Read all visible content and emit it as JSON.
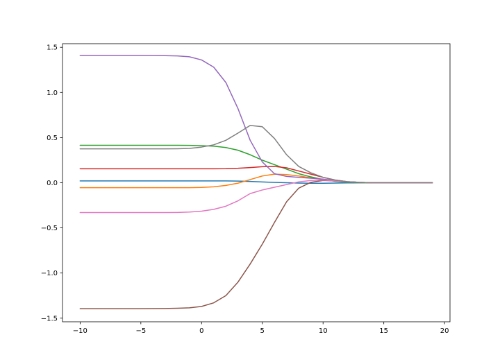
{
  "chart_data": {
    "type": "line",
    "title": "",
    "xlabel": "",
    "ylabel": "",
    "xlim": [
      -11.45,
      20.45
    ],
    "ylim": [
      -1.54,
      1.54
    ],
    "xticks": [
      -10,
      -5,
      0,
      5,
      10,
      15,
      20
    ],
    "yticks": [
      -1.5,
      -1.0,
      -0.5,
      0.0,
      0.5,
      1.0,
      1.5
    ],
    "xtick_labels": [
      "−10",
      "−5",
      "0",
      "5",
      "10",
      "15",
      "20"
    ],
    "ytick_labels": [
      "−1.5",
      "−1.0",
      "−0.5",
      "0.0",
      "0.5",
      "1.0",
      "1.5"
    ],
    "grid": false,
    "legend": "none",
    "x": [
      -10,
      -9,
      -8,
      -7,
      -6,
      -5,
      -4,
      -3,
      -2,
      -1,
      0,
      1,
      2,
      3,
      4,
      5,
      6,
      7,
      8,
      9,
      10,
      11,
      12,
      13,
      14,
      15,
      16,
      17,
      18,
      19
    ],
    "series": [
      {
        "color": "#1f77b4",
        "values": [
          0.02,
          0.02,
          0.02,
          0.02,
          0.02,
          0.02,
          0.02,
          0.02,
          0.02,
          0.02,
          0.02,
          0.02,
          0.02,
          0.018,
          0.014,
          0.009,
          0.004,
          0.0,
          -0.004,
          -0.006,
          -0.006,
          -0.004,
          -0.002,
          -0.001,
          0.0,
          0.0,
          0.0,
          0.0,
          0.0,
          0.0
        ]
      },
      {
        "color": "#ff7f0e",
        "values": [
          -0.055,
          -0.055,
          -0.055,
          -0.055,
          -0.055,
          -0.055,
          -0.055,
          -0.055,
          -0.055,
          -0.055,
          -0.052,
          -0.045,
          -0.03,
          -0.005,
          0.035,
          0.075,
          0.095,
          0.09,
          0.075,
          0.055,
          0.035,
          0.018,
          0.007,
          0.002,
          0.0,
          0.0,
          0.0,
          0.0,
          0.0,
          0.0
        ]
      },
      {
        "color": "#2ca02c",
        "values": [
          0.415,
          0.415,
          0.415,
          0.415,
          0.415,
          0.415,
          0.415,
          0.415,
          0.415,
          0.414,
          0.41,
          0.405,
          0.39,
          0.36,
          0.31,
          0.25,
          0.2,
          0.15,
          0.1,
          0.065,
          0.035,
          0.015,
          0.005,
          0.0,
          0.0,
          0.0,
          0.0,
          0.0,
          0.0,
          0.0
        ]
      },
      {
        "color": "#d62728",
        "values": [
          0.155,
          0.155,
          0.155,
          0.155,
          0.155,
          0.155,
          0.155,
          0.155,
          0.155,
          0.155,
          0.155,
          0.155,
          0.156,
          0.16,
          0.168,
          0.178,
          0.18,
          0.165,
          0.13,
          0.095,
          0.06,
          0.03,
          0.012,
          0.004,
          0.0,
          0.0,
          0.0,
          0.0,
          0.0,
          0.0
        ]
      },
      {
        "color": "#9467bd",
        "values": [
          1.41,
          1.41,
          1.41,
          1.41,
          1.41,
          1.41,
          1.409,
          1.408,
          1.405,
          1.395,
          1.36,
          1.28,
          1.11,
          0.82,
          0.47,
          0.23,
          0.1,
          0.07,
          0.06,
          0.05,
          0.04,
          0.025,
          0.012,
          0.004,
          0.0,
          0.0,
          0.0,
          0.0,
          0.0,
          0.0
        ]
      },
      {
        "color": "#8c564b",
        "values": [
          -1.395,
          -1.395,
          -1.395,
          -1.395,
          -1.395,
          -1.395,
          -1.394,
          -1.393,
          -1.39,
          -1.385,
          -1.37,
          -1.33,
          -1.25,
          -1.1,
          -0.9,
          -0.68,
          -0.44,
          -0.21,
          -0.06,
          0.005,
          0.025,
          0.02,
          0.01,
          0.004,
          0.0,
          0.0,
          0.0,
          0.0,
          0.0,
          0.0
        ]
      },
      {
        "color": "#e377c2",
        "values": [
          -0.33,
          -0.33,
          -0.33,
          -0.33,
          -0.33,
          -0.33,
          -0.33,
          -0.33,
          -0.329,
          -0.325,
          -0.315,
          -0.295,
          -0.26,
          -0.2,
          -0.12,
          -0.08,
          -0.05,
          -0.02,
          0.01,
          0.025,
          0.03,
          0.02,
          0.01,
          0.004,
          0.0,
          0.0,
          0.0,
          0.0,
          0.0,
          0.0
        ]
      },
      {
        "color": "#7f7f7f",
        "values": [
          0.375,
          0.375,
          0.375,
          0.375,
          0.375,
          0.375,
          0.375,
          0.375,
          0.376,
          0.38,
          0.395,
          0.42,
          0.47,
          0.55,
          0.635,
          0.62,
          0.49,
          0.31,
          0.18,
          0.11,
          0.06,
          0.03,
          0.012,
          0.004,
          0.0,
          0.0,
          0.0,
          0.0,
          0.0,
          0.0
        ]
      }
    ]
  }
}
